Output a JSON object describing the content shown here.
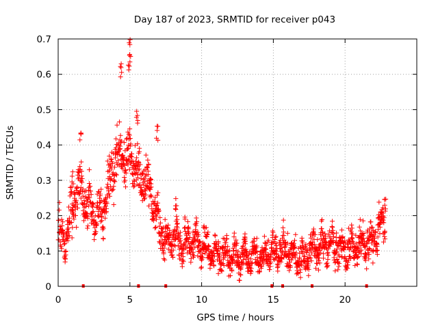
{
  "chart_data": {
    "type": "scatter",
    "title": "Day 187 of 2023, SRMTID for receiver p043",
    "xlabel": "GPS time / hours",
    "ylabel": "SRMTID / TECUs",
    "xlim": [
      0,
      25
    ],
    "ylim": [
      0,
      0.7
    ],
    "x_ticks": [
      0,
      5,
      10,
      15,
      20
    ],
    "x_tick_labels": [
      "0",
      "5",
      "10",
      "15",
      "20"
    ],
    "y_ticks": [
      0,
      0.1,
      0.2,
      0.3,
      0.4,
      0.5,
      0.6,
      0.7
    ],
    "y_tick_labels": [
      "0",
      "0.1",
      "0.2",
      "0.3",
      "0.4",
      "0.5",
      "0.6",
      "0.7"
    ],
    "grid": true,
    "series_color": "#ff0000",
    "marker": "plus",
    "trend": [
      {
        "x": 0.0,
        "y": 0.14
      },
      {
        "x": 0.5,
        "y": 0.13
      },
      {
        "x": 1.0,
        "y": 0.22
      },
      {
        "x": 1.5,
        "y": 0.28
      },
      {
        "x": 2.0,
        "y": 0.24
      },
      {
        "x": 2.5,
        "y": 0.2
      },
      {
        "x": 3.0,
        "y": 0.2
      },
      {
        "x": 3.5,
        "y": 0.28
      },
      {
        "x": 4.0,
        "y": 0.36
      },
      {
        "x": 4.5,
        "y": 0.38
      },
      {
        "x": 5.0,
        "y": 0.36
      },
      {
        "x": 5.5,
        "y": 0.32
      },
      {
        "x": 6.0,
        "y": 0.3
      },
      {
        "x": 6.5,
        "y": 0.26
      },
      {
        "x": 7.0,
        "y": 0.18
      },
      {
        "x": 7.5,
        "y": 0.12
      },
      {
        "x": 8.0,
        "y": 0.14
      },
      {
        "x": 8.5,
        "y": 0.12
      },
      {
        "x": 9.0,
        "y": 0.11
      },
      {
        "x": 9.5,
        "y": 0.13
      },
      {
        "x": 10.0,
        "y": 0.12
      },
      {
        "x": 10.5,
        "y": 0.1
      },
      {
        "x": 11.0,
        "y": 0.09
      },
      {
        "x": 12.0,
        "y": 0.09
      },
      {
        "x": 13.0,
        "y": 0.08
      },
      {
        "x": 14.0,
        "y": 0.08
      },
      {
        "x": 15.0,
        "y": 0.1
      },
      {
        "x": 16.0,
        "y": 0.1
      },
      {
        "x": 17.0,
        "y": 0.08
      },
      {
        "x": 18.0,
        "y": 0.11
      },
      {
        "x": 19.0,
        "y": 0.12
      },
      {
        "x": 20.0,
        "y": 0.1
      },
      {
        "x": 21.0,
        "y": 0.12
      },
      {
        "x": 22.0,
        "y": 0.13
      },
      {
        "x": 22.8,
        "y": 0.2
      }
    ],
    "scatter_spread": 0.045,
    "point_count": 1800,
    "peaks": [
      {
        "x": 1.55,
        "y": 0.44
      },
      {
        "x": 1.0,
        "y": 0.33
      },
      {
        "x": 4.4,
        "y": 0.63
      },
      {
        "x": 4.95,
        "y": 0.66
      },
      {
        "x": 5.0,
        "y": 0.7
      },
      {
        "x": 5.5,
        "y": 0.51
      },
      {
        "x": 6.9,
        "y": 0.46
      },
      {
        "x": 8.2,
        "y": 0.26
      },
      {
        "x": 13.0,
        "y": 0.17
      },
      {
        "x": 22.8,
        "y": 0.26
      }
    ],
    "baseline_flags_x": [
      1.75,
      5.6,
      7.5,
      14.9,
      15.65,
      17.7,
      21.5
    ]
  }
}
